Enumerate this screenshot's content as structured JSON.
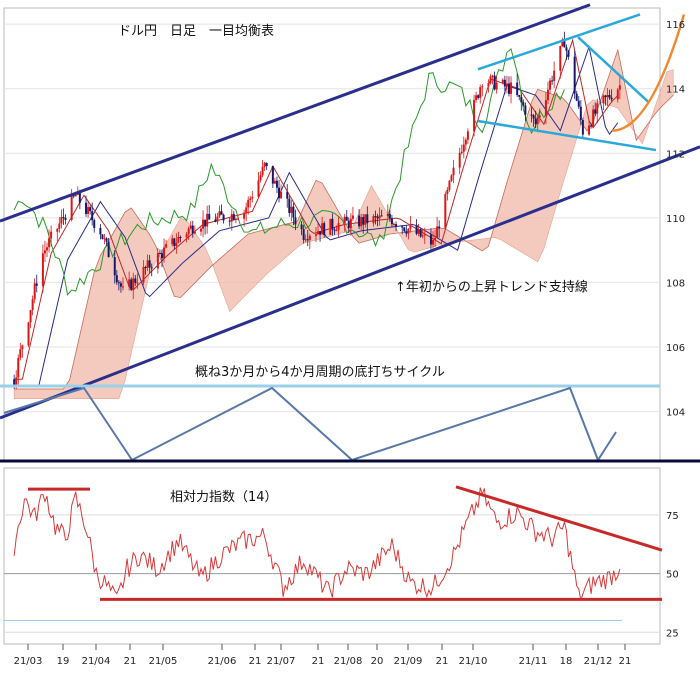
{
  "chart_data": [
    {
      "type": "candlestick",
      "title": "ドル円　日足　一目均衡表",
      "y_axis_side": "right",
      "ylim": [
        102.5,
        116.5
      ],
      "y_ticks": [
        104,
        106,
        108,
        110,
        112,
        114,
        116
      ],
      "x_tick_labels": [
        "21/03",
        "19",
        "21/04",
        "21",
        "21/05",
        "21/06",
        "21",
        "21/07",
        "21",
        "21/08",
        "20",
        "21/09",
        "21",
        "21/10",
        "21/11",
        "18",
        "21/12",
        "21"
      ],
      "price_keypoints": [
        {
          "date": "2021-03-01",
          "value": 105.0
        },
        {
          "date": "2021-03-15",
          "value": 108.9
        },
        {
          "date": "2021-03-31",
          "value": 110.7
        },
        {
          "date": "2021-04-12",
          "value": 109.6
        },
        {
          "date": "2021-04-23",
          "value": 107.7
        },
        {
          "date": "2021-05-10",
          "value": 108.8
        },
        {
          "date": "2021-05-28",
          "value": 109.8
        },
        {
          "date": "2021-06-21",
          "value": 110.2
        },
        {
          "date": "2021-07-01",
          "value": 111.6
        },
        {
          "date": "2021-07-20",
          "value": 109.5
        },
        {
          "date": "2021-08-05",
          "value": 109.8
        },
        {
          "date": "2021-08-31",
          "value": 110.0
        },
        {
          "date": "2021-09-21",
          "value": 109.2
        },
        {
          "date": "2021-10-01",
          "value": 111.4
        },
        {
          "date": "2021-10-15",
          "value": 114.3
        },
        {
          "date": "2021-10-29",
          "value": 114.0
        },
        {
          "date": "2021-11-10",
          "value": 112.9
        },
        {
          "date": "2021-11-24",
          "value": 115.5
        },
        {
          "date": "2021-12-03",
          "value": 112.7
        },
        {
          "date": "2021-12-13",
          "value": 113.6
        },
        {
          "date": "2021-12-21",
          "value": 114.1
        }
      ],
      "annotations": [
        "↑年初からの上昇トレンド支持線",
        "概ね3か月から4か月周期の底打ちサイクル"
      ],
      "colors": {
        "up_candle": "#d81818",
        "down_candle": "#18186a",
        "cloud": "#f0b8a8",
        "trend_channel": "#2a2f8c",
        "triangle": "#2aa8d8",
        "projection": "#f08a30",
        "cycle": "#5878a8",
        "cycle_top_line": "#9ad0e8"
      }
    },
    {
      "type": "line",
      "title": "相対力指数（14）",
      "y_axis_side": "right",
      "ylim": [
        20,
        95
      ],
      "y_ticks": [
        25,
        50,
        75
      ],
      "series": [
        {
          "x": [
            "2021-03-01",
            "2021-03-06",
            "2021-03-11",
            "2021-03-16",
            "2021-03-21",
            "2021-03-26",
            "2021-03-31",
            "2021-04-05",
            "2021-04-10",
            "2021-04-15",
            "2021-04-20",
            "2021-04-25",
            "2021-05-01",
            "2021-05-10",
            "2021-05-20",
            "2021-05-31",
            "2021-06-10",
            "2021-06-21",
            "2021-07-01",
            "2021-07-10",
            "2021-07-20",
            "2021-08-01",
            "2021-08-10",
            "2021-08-20",
            "2021-09-01",
            "2021-09-10",
            "2021-09-21",
            "2021-10-01",
            "2021-10-08",
            "2021-10-15",
            "2021-10-22",
            "2021-11-01",
            "2021-11-10",
            "2021-11-18",
            "2021-11-24",
            "2021-12-01",
            "2021-12-08",
            "2021-12-15",
            "2021-12-21"
          ],
          "values": [
            62,
            82,
            74,
            85,
            70,
            65,
            82,
            70,
            50,
            45,
            38,
            52,
            58,
            52,
            64,
            48,
            58,
            64,
            66,
            44,
            56,
            42,
            52,
            50,
            62,
            46,
            44,
            58,
            72,
            84,
            72,
            76,
            68,
            65,
            70,
            40,
            46,
            48,
            52
          ]
        }
      ],
      "colors": {
        "rsi": "#d83a3a",
        "resistance_line": "#c82828"
      }
    }
  ]
}
